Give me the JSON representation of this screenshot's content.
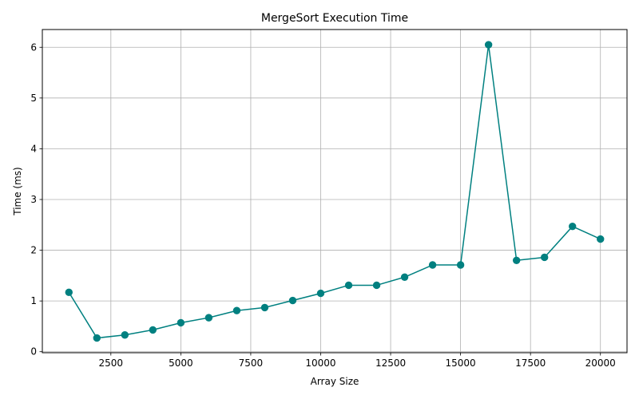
{
  "chart_data": {
    "type": "line",
    "title": "MergeSort Execution Time",
    "xlabel": "Array Size",
    "ylabel": "Time (ms)",
    "xlim": [
      50,
      20950
    ],
    "ylim": [
      -0.02,
      6.35
    ],
    "xticks": [
      2500,
      5000,
      7500,
      10000,
      12500,
      15000,
      17500,
      20000
    ],
    "xtick_labels": [
      "2500",
      "5000",
      "7500",
      "10000",
      "12500",
      "15000",
      "17500",
      "20000"
    ],
    "yticks": [
      0,
      1,
      2,
      3,
      4,
      5,
      6
    ],
    "ytick_labels": [
      "0",
      "1",
      "2",
      "3",
      "4",
      "5",
      "6"
    ],
    "grid": true,
    "color": "#008080",
    "marker": "circle",
    "x": [
      1000,
      2000,
      3000,
      4000,
      5000,
      6000,
      7000,
      8000,
      9000,
      10000,
      11000,
      12000,
      13000,
      14000,
      15000,
      16000,
      17000,
      18000,
      19000,
      20000
    ],
    "y": [
      1.17,
      0.27,
      0.33,
      0.43,
      0.57,
      0.67,
      0.81,
      0.87,
      1.01,
      1.15,
      1.31,
      1.31,
      1.47,
      1.71,
      1.71,
      6.05,
      1.8,
      1.86,
      2.47,
      2.22
    ]
  }
}
